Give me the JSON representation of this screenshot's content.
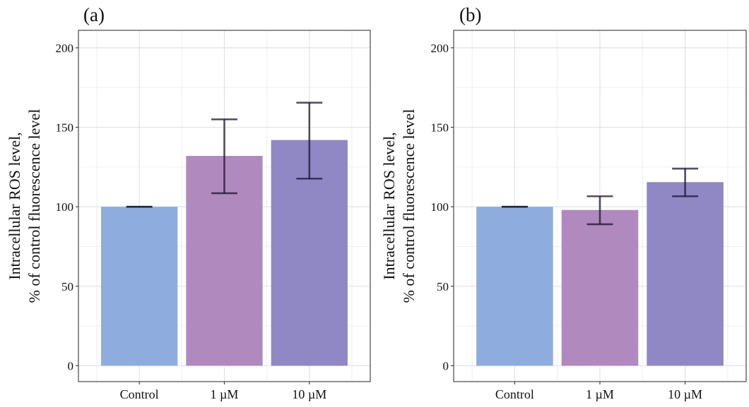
{
  "chart_data": [
    {
      "type": "bar",
      "panel_label": "(a)",
      "title": "",
      "xlabel": "",
      "ylabel_line1": "Intracellular ROS level,",
      "ylabel_line2": "% of control fluorescence level",
      "categories": [
        "Control",
        "1 µM",
        "10 µM"
      ],
      "values": [
        100,
        132,
        142
      ],
      "error_low": [
        100,
        108.5,
        117.7
      ],
      "error_high": [
        100,
        155,
        165.5
      ],
      "colors": [
        "#8eadde",
        "#b08abf",
        "#8f88c4"
      ],
      "yticks": [
        0,
        50,
        100,
        150,
        200
      ],
      "ylim": [
        -10,
        211
      ],
      "grid": true,
      "legend": "none"
    },
    {
      "type": "bar",
      "panel_label": "(b)",
      "title": "",
      "xlabel": "",
      "ylabel_line1": "Intracellular ROS level,",
      "ylabel_line2": "% of control fluorescence level",
      "categories": [
        "Control",
        "1 µM",
        "10 µM"
      ],
      "values": [
        100,
        98,
        115.5
      ],
      "error_low": [
        100,
        89,
        106.6
      ],
      "error_high": [
        100,
        106.6,
        124
      ],
      "colors": [
        "#8eadde",
        "#b08abf",
        "#8f88c4"
      ],
      "yticks": [
        0,
        50,
        100,
        150,
        200
      ],
      "ylim": [
        -10,
        211
      ],
      "grid": true,
      "legend": "none"
    }
  ]
}
